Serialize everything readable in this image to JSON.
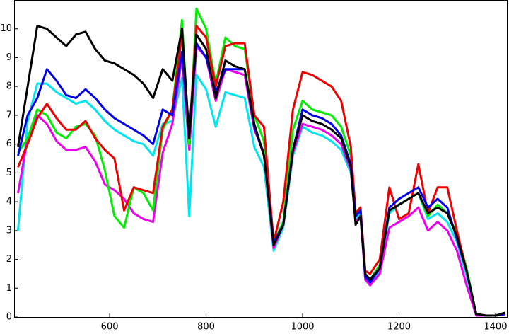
{
  "chart_data": {
    "type": "line",
    "x": [
      410,
      430,
      450,
      470,
      490,
      510,
      530,
      550,
      570,
      590,
      610,
      630,
      650,
      670,
      690,
      710,
      730,
      750,
      765,
      780,
      800,
      820,
      840,
      860,
      880,
      900,
      920,
      940,
      960,
      980,
      1000,
      1020,
      1040,
      1060,
      1080,
      1100,
      1110,
      1120,
      1130,
      1140,
      1160,
      1180,
      1200,
      1220,
      1240,
      1260,
      1280,
      1300,
      1320,
      1340,
      1360,
      1380,
      1400,
      1420
    ],
    "series": [
      {
        "color": "#00e5ee",
        "values": [
          3.0,
          6.8,
          8.1,
          8.1,
          7.8,
          7.6,
          7.4,
          7.5,
          7.2,
          6.8,
          6.5,
          6.3,
          6.1,
          6.0,
          5.6,
          6.7,
          6.8,
          8.3,
          3.5,
          8.4,
          7.9,
          6.6,
          7.8,
          7.7,
          7.6,
          5.9,
          5.2,
          2.3,
          3.1,
          5.6,
          6.6,
          6.4,
          6.3,
          6.1,
          5.8,
          5.0,
          3.4,
          3.6,
          1.3,
          1.1,
          1.6,
          3.6,
          3.9,
          4.1,
          4.3,
          3.4,
          3.6,
          3.3,
          2.6,
          1.4,
          0.05,
          0.05,
          0.05,
          0.1
        ]
      },
      {
        "color": "#ee00ee",
        "values": [
          4.3,
          6.2,
          7.0,
          6.7,
          6.1,
          5.8,
          5.8,
          5.9,
          5.4,
          4.6,
          4.4,
          4.1,
          3.6,
          3.4,
          3.3,
          5.7,
          6.7,
          9.0,
          5.8,
          9.4,
          9.0,
          7.5,
          8.6,
          8.5,
          8.4,
          6.5,
          5.7,
          2.4,
          3.2,
          5.7,
          6.7,
          6.6,
          6.5,
          6.3,
          6.0,
          5.1,
          3.3,
          3.5,
          1.3,
          1.1,
          1.5,
          3.1,
          3.3,
          3.5,
          3.8,
          3.0,
          3.3,
          3.0,
          2.3,
          1.1,
          0.05,
          0.05,
          0.05,
          0.1
        ]
      },
      {
        "color": "#00ee00",
        "values": [
          5.7,
          6.2,
          7.2,
          7.0,
          6.4,
          6.2,
          6.6,
          6.7,
          6.3,
          5.1,
          3.5,
          3.1,
          4.5,
          4.3,
          3.7,
          6.5,
          7.2,
          10.3,
          6.0,
          10.7,
          10.0,
          8.1,
          9.7,
          9.4,
          9.3,
          7.0,
          6.1,
          2.6,
          3.3,
          6.5,
          7.5,
          7.2,
          7.1,
          7.0,
          6.6,
          5.6,
          3.6,
          3.8,
          1.4,
          1.3,
          1.8,
          3.7,
          3.9,
          4.1,
          4.3,
          3.5,
          3.9,
          3.6,
          2.9,
          1.7,
          0.1,
          0.05,
          0.05,
          0.1
        ]
      },
      {
        "color": "#ee0000",
        "values": [
          5.2,
          6.0,
          6.9,
          7.4,
          6.9,
          6.5,
          6.5,
          6.8,
          6.2,
          5.8,
          5.5,
          3.7,
          4.5,
          4.4,
          4.3,
          6.6,
          7.2,
          9.8,
          6.3,
          10.1,
          9.7,
          8.0,
          9.4,
          9.5,
          9.5,
          7.0,
          6.6,
          2.6,
          4.0,
          7.2,
          8.5,
          8.4,
          8.2,
          8.0,
          7.5,
          5.9,
          3.6,
          3.8,
          1.6,
          1.5,
          2.0,
          4.5,
          3.4,
          3.6,
          5.3,
          3.6,
          4.5,
          4.5,
          3.0,
          1.6,
          0.1,
          0.05,
          0.05,
          0.1
        ]
      },
      {
        "color": "#0000ee",
        "values": [
          5.6,
          7.0,
          7.6,
          8.6,
          8.2,
          7.7,
          7.6,
          7.9,
          7.6,
          7.2,
          6.9,
          6.7,
          6.5,
          6.3,
          6.0,
          7.2,
          7.0,
          9.2,
          6.4,
          9.5,
          9.0,
          7.8,
          8.6,
          8.6,
          8.6,
          6.6,
          5.6,
          2.6,
          3.2,
          5.8,
          7.2,
          7.0,
          6.9,
          6.7,
          6.3,
          5.3,
          3.5,
          3.7,
          1.4,
          1.2,
          1.7,
          3.8,
          4.1,
          4.3,
          4.5,
          3.8,
          4.1,
          3.8,
          2.7,
          1.6,
          0.1,
          0.05,
          0.05,
          0.1
        ]
      },
      {
        "color": "#000000",
        "values": [
          5.9,
          8.0,
          10.1,
          10.0,
          9.7,
          9.4,
          9.8,
          9.9,
          9.3,
          8.9,
          8.8,
          8.6,
          8.4,
          8.1,
          7.6,
          8.6,
          8.2,
          10.0,
          6.2,
          9.8,
          9.3,
          7.6,
          8.9,
          8.7,
          8.6,
          6.7,
          5.6,
          2.5,
          3.2,
          5.8,
          7.0,
          6.8,
          6.7,
          6.5,
          6.2,
          5.2,
          3.2,
          3.5,
          1.5,
          1.3,
          1.7,
          3.7,
          3.9,
          4.1,
          4.3,
          3.6,
          3.8,
          3.6,
          2.8,
          1.6,
          0.1,
          0.05,
          0.05,
          0.15
        ]
      }
    ],
    "xlim": [
      402,
      1425
    ],
    "ylim": [
      0,
      11
    ],
    "xticks": [
      600,
      800,
      1000,
      1200,
      1400
    ],
    "yticks": [
      0,
      1,
      2,
      3,
      4,
      5,
      6,
      7,
      8,
      9,
      10
    ]
  }
}
